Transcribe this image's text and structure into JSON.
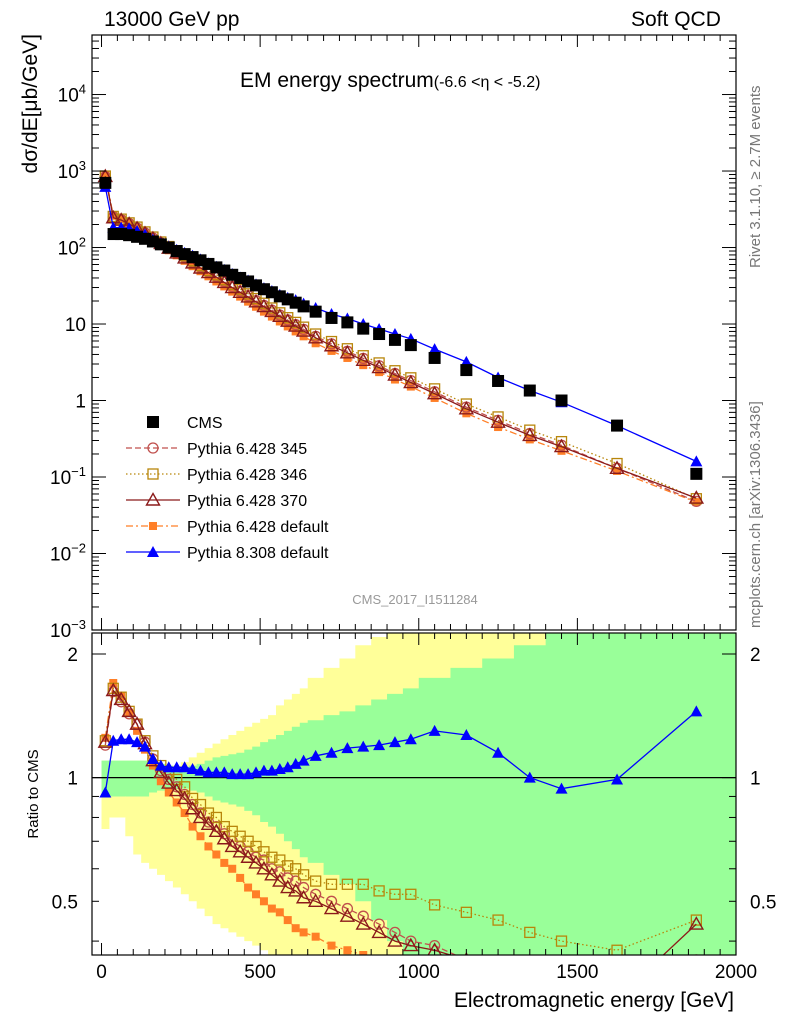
{
  "header": {
    "beam_label": "13000 GeV pp",
    "process_label": "Soft QCD"
  },
  "side_labels": {
    "rivet": "Rivet 3.1.10, ≥ 2.7M events",
    "source": "mcplots.cern.ch [arXiv:1306.3436]"
  },
  "chart_data": {
    "type": "scatter",
    "title": "EM energy spectrum",
    "title_suffix": "(-6.6 <η < -5.2)",
    "watermark": "CMS_2017_I1511284",
    "xlabel": "Electromagnetic energy [GeV]",
    "ylabel": "dσ/dE[μb/GeV]",
    "ratio_ylabel": "Ratio to CMS",
    "xlim": [
      -30,
      2000
    ],
    "ylim": [
      0.001,
      60000
    ],
    "ylog": true,
    "ratio_ylim": [
      0.37,
      2.25
    ],
    "xticks": [
      0,
      500,
      1000,
      1500,
      2000
    ],
    "yticks": [
      {
        "v": 10000,
        "base": "10",
        "exp": "4"
      },
      {
        "v": 1000,
        "base": "10",
        "exp": "3"
      },
      {
        "v": 100,
        "base": "10",
        "exp": "2"
      },
      {
        "v": 10,
        "base": "10",
        "exp": ""
      },
      {
        "v": 1,
        "base": "1",
        "exp": ""
      },
      {
        "v": 0.1,
        "base": "10",
        "exp": "−1"
      },
      {
        "v": 0.01,
        "base": "10",
        "exp": "−2"
      },
      {
        "v": 0.001,
        "base": "10",
        "exp": "−3"
      }
    ],
    "ratio_yticks": [
      0.5,
      1,
      2
    ],
    "legend_position": "bottom-left",
    "band_edges": [
      0,
      25,
      50,
      75,
      100,
      125,
      150,
      175,
      200,
      225,
      250,
      275,
      300,
      325,
      350,
      375,
      400,
      425,
      450,
      475,
      500,
      525,
      550,
      575,
      600,
      625,
      650,
      700,
      750,
      800,
      850,
      900,
      950,
      1000,
      1100,
      1200,
      1300,
      1400,
      1500,
      2000
    ],
    "band_inner_upper": [
      1.1,
      1.1,
      1.1,
      1.1,
      1.1,
      1.1,
      1.1,
      1.08,
      1.07,
      1.06,
      1.06,
      1.07,
      1.08,
      1.1,
      1.12,
      1.13,
      1.14,
      1.15,
      1.17,
      1.19,
      1.22,
      1.24,
      1.27,
      1.3,
      1.33,
      1.36,
      1.38,
      1.42,
      1.45,
      1.5,
      1.55,
      1.6,
      1.65,
      1.75,
      1.85,
      1.95,
      2.1,
      2.25,
      2.25
    ],
    "band_inner_lower": [
      0.9,
      0.9,
      0.9,
      0.9,
      0.9,
      0.9,
      0.92,
      0.93,
      0.94,
      0.94,
      0.94,
      0.93,
      0.92,
      0.9,
      0.88,
      0.87,
      0.86,
      0.85,
      0.83,
      0.81,
      0.78,
      0.76,
      0.73,
      0.7,
      0.67,
      0.64,
      0.62,
      0.58,
      0.55,
      0.5,
      0.45,
      0.4,
      0.37,
      0.37,
      0.37,
      0.37,
      0.37,
      0.37,
      0.37
    ],
    "band_outer_upper": [
      1.1,
      1.1,
      1.1,
      1.1,
      1.1,
      1.1,
      1.1,
      1.08,
      1.07,
      1.07,
      1.09,
      1.12,
      1.15,
      1.18,
      1.21,
      1.24,
      1.27,
      1.3,
      1.33,
      1.36,
      1.39,
      1.42,
      1.5,
      1.55,
      1.6,
      1.65,
      1.75,
      1.85,
      1.95,
      2.1,
      2.2,
      2.25,
      2.25,
      2.25,
      2.25,
      2.25,
      2.25,
      2.25,
      2.25
    ],
    "band_outer_lower": [
      0.75,
      0.8,
      0.8,
      0.72,
      0.65,
      0.62,
      0.6,
      0.58,
      0.56,
      0.54,
      0.52,
      0.5,
      0.48,
      0.46,
      0.44,
      0.43,
      0.42,
      0.41,
      0.4,
      0.39,
      0.38,
      0.37,
      0.37,
      0.37,
      0.37,
      0.37,
      0.37,
      0.37,
      0.37,
      0.37,
      0.37,
      0.37,
      0.37,
      0.37,
      0.37,
      0.37,
      0.37,
      0.37,
      0.37
    ],
    "series": [
      {
        "name": "CMS",
        "color": "#000000",
        "marker": "square-filled",
        "line": "none",
        "x": [
          12,
          38,
          62,
          87,
          112,
          137,
          162,
          187,
          212,
          237,
          262,
          287,
          312,
          337,
          362,
          387,
          412,
          437,
          462,
          487,
          512,
          537,
          562,
          587,
          612,
          637,
          675,
          725,
          775,
          825,
          875,
          925,
          975,
          1050,
          1150,
          1250,
          1350,
          1450,
          1625,
          1875
        ],
        "y": [
          700,
          150,
          150,
          145,
          138,
          130,
          120,
          110,
          100,
          90,
          82,
          75,
          68,
          61,
          55,
          50,
          44,
          40,
          36,
          32,
          28.5,
          26,
          23,
          21,
          19,
          17,
          14.5,
          12,
          10.5,
          8.7,
          7.4,
          6.2,
          5.3,
          3.6,
          2.5,
          1.8,
          1.35,
          1.0,
          0.47,
          0.11
        ]
      },
      {
        "name": "Pythia 6.428 345",
        "color": "#c0504d",
        "marker": "circle-open",
        "line": "dashed",
        "x": [
          12,
          37,
          62,
          87,
          112,
          137,
          162,
          187,
          212,
          237,
          262,
          287,
          312,
          337,
          362,
          387,
          412,
          437,
          462,
          487,
          512,
          537,
          562,
          587,
          612,
          637,
          675,
          725,
          775,
          825,
          875,
          925,
          975,
          1050,
          1150,
          1250,
          1350,
          1450,
          1625,
          1875
        ],
        "y": [
          840,
          250,
          230,
          205,
          180,
          155,
          133,
          115,
          100,
          87,
          75,
          64,
          56,
          48,
          42,
          36,
          31,
          27,
          23.5,
          20.2,
          17.5,
          15.2,
          13.1,
          11.3,
          9.8,
          8.5,
          6.9,
          5.5,
          4.4,
          3.55,
          2.85,
          2.25,
          1.82,
          1.3,
          0.82,
          0.55,
          0.37,
          0.26,
          0.13,
          0.048
        ],
        "ratio": [
          1.2,
          1.62,
          1.53,
          1.43,
          1.35,
          1.22,
          1.11,
          1.04,
          0.99,
          0.95,
          0.91,
          0.86,
          0.82,
          0.78,
          0.76,
          0.73,
          0.7,
          0.68,
          0.66,
          0.64,
          0.63,
          0.6,
          0.59,
          0.57,
          0.56,
          0.54,
          0.52,
          0.5,
          0.48,
          0.46,
          0.44,
          0.42,
          0.4,
          0.39,
          0.36,
          0.34,
          0.32,
          0.32,
          0.32,
          0.36
        ]
      },
      {
        "name": "Pythia 6.428 346",
        "color": "#b8860b",
        "marker": "square-open",
        "line": "dotted",
        "x": [
          12,
          37,
          62,
          87,
          112,
          137,
          162,
          187,
          212,
          237,
          262,
          287,
          312,
          337,
          362,
          387,
          412,
          437,
          462,
          487,
          512,
          537,
          562,
          587,
          612,
          637,
          675,
          725,
          775,
          825,
          875,
          925,
          975,
          1050,
          1150,
          1250,
          1350,
          1450,
          1625,
          1875
        ],
        "y": [
          860,
          255,
          235,
          210,
          185,
          160,
          137,
          118,
          103,
          90,
          78,
          67,
          58,
          50,
          44,
          38,
          33,
          28.5,
          24.8,
          21.5,
          18.7,
          16.2,
          14,
          12.1,
          10.5,
          9.1,
          7.4,
          5.9,
          4.75,
          3.85,
          3.1,
          2.45,
          1.98,
          1.42,
          0.9,
          0.61,
          0.41,
          0.29,
          0.15,
          0.052
        ],
        "ratio": [
          1.23,
          1.65,
          1.57,
          1.45,
          1.35,
          1.23,
          1.13,
          1.07,
          1.03,
          0.99,
          0.95,
          0.89,
          0.86,
          0.82,
          0.8,
          0.76,
          0.74,
          0.72,
          0.7,
          0.68,
          0.66,
          0.64,
          0.63,
          0.61,
          0.6,
          0.58,
          0.56,
          0.55,
          0.55,
          0.55,
          0.53,
          0.52,
          0.52,
          0.49,
          0.47,
          0.45,
          0.42,
          0.4,
          0.38,
          0.45
        ]
      },
      {
        "name": "Pythia 6.428 370",
        "color": "#8b1a1a",
        "marker": "triangle-open",
        "line": "solid",
        "x": [
          12,
          37,
          62,
          87,
          112,
          137,
          162,
          187,
          212,
          237,
          262,
          287,
          312,
          337,
          362,
          387,
          412,
          437,
          462,
          487,
          512,
          537,
          562,
          587,
          612,
          637,
          675,
          725,
          775,
          825,
          875,
          925,
          975,
          1050,
          1150,
          1250,
          1350,
          1450,
          1625,
          1875
        ],
        "y": [
          850,
          245,
          228,
          203,
          178,
          153,
          131,
          113,
          98,
          85,
          73,
          63,
          54,
          47,
          41,
          35,
          30,
          26,
          22.6,
          19.5,
          16.9,
          14.6,
          12.6,
          10.9,
          9.4,
          8.1,
          6.6,
          5.2,
          4.2,
          3.35,
          2.7,
          2.15,
          1.72,
          1.23,
          0.78,
          0.52,
          0.35,
          0.25,
          0.13,
          0.053
        ],
        "ratio": [
          1.22,
          1.63,
          1.55,
          1.45,
          1.35,
          1.21,
          1.1,
          1.03,
          0.97,
          0.93,
          0.89,
          0.84,
          0.8,
          0.77,
          0.74,
          0.71,
          0.68,
          0.66,
          0.64,
          0.62,
          0.6,
          0.58,
          0.56,
          0.54,
          0.53,
          0.51,
          0.5,
          0.48,
          0.46,
          0.44,
          0.42,
          0.4,
          0.39,
          0.38,
          0.36,
          0.33,
          0.31,
          0.3,
          0.29,
          0.44
        ]
      },
      {
        "name": "Pythia 6.428 default",
        "color": "#ff7f27",
        "marker": "square-filled-small",
        "line": "dashdot",
        "x": [
          12,
          37,
          62,
          87,
          112,
          137,
          162,
          187,
          212,
          237,
          262,
          287,
          312,
          337,
          362,
          387,
          412,
          437,
          462,
          487,
          512,
          537,
          562,
          587,
          612,
          637,
          675,
          725,
          775,
          825,
          875,
          925,
          975,
          1050,
          1150,
          1250,
          1350,
          1450,
          1625,
          1875
        ],
        "y": [
          900,
          260,
          236,
          208,
          180,
          152,
          128,
          108,
          92,
          79,
          67,
          57,
          49,
          42,
          36,
          31,
          26.5,
          22.8,
          19.6,
          16.8,
          14.5,
          12.5,
          10.8,
          9.3,
          8.0,
          6.9,
          5.6,
          4.45,
          3.6,
          2.9,
          2.35,
          1.88,
          1.52,
          1.08,
          0.68,
          0.45,
          0.31,
          0.22,
          0.12,
          0.047
        ],
        "ratio": [
          1.25,
          1.7,
          1.58,
          1.44,
          1.3,
          1.17,
          1.07,
          0.98,
          0.92,
          0.87,
          0.82,
          0.76,
          0.72,
          0.68,
          0.65,
          0.62,
          0.6,
          0.57,
          0.54,
          0.52,
          0.5,
          0.48,
          0.47,
          0.45,
          0.43,
          0.42,
          0.41,
          0.39,
          0.38,
          0.37,
          0.36,
          0.35,
          0.34,
          0.32,
          0.3,
          0.28,
          0.27,
          0.26,
          0.25,
          0.33
        ]
      },
      {
        "name": "Pythia 8.308 default",
        "color": "#0000ff",
        "marker": "triangle-filled",
        "line": "solid",
        "x": [
          12,
          37,
          62,
          87,
          112,
          137,
          162,
          187,
          212,
          237,
          262,
          287,
          312,
          337,
          362,
          387,
          412,
          437,
          462,
          487,
          512,
          537,
          562,
          587,
          612,
          637,
          675,
          725,
          775,
          825,
          875,
          925,
          975,
          1050,
          1150,
          1250,
          1350,
          1450,
          1625,
          1875
        ],
        "y": [
          620,
          182,
          182,
          178,
          165,
          148,
          127,
          113,
          103,
          93,
          85,
          78,
          70,
          62,
          56,
          51,
          45,
          40.5,
          37,
          33,
          29.5,
          27,
          24,
          22,
          20.5,
          18.5,
          16.2,
          13.5,
          11.8,
          10,
          8.6,
          7.4,
          6.4,
          4.7,
          3.2,
          2.0,
          1.35,
          0.95,
          0.47,
          0.16
        ],
        "ratio": [
          0.92,
          1.23,
          1.24,
          1.24,
          1.22,
          1.19,
          1.11,
          1.07,
          1.06,
          1.06,
          1.06,
          1.05,
          1.04,
          1.03,
          1.03,
          1.03,
          1.02,
          1.02,
          1.02,
          1.03,
          1.04,
          1.04,
          1.05,
          1.06,
          1.08,
          1.1,
          1.13,
          1.15,
          1.18,
          1.19,
          1.2,
          1.22,
          1.24,
          1.3,
          1.27,
          1.15,
          1.0,
          0.94,
          0.99,
          1.45
        ]
      }
    ]
  }
}
